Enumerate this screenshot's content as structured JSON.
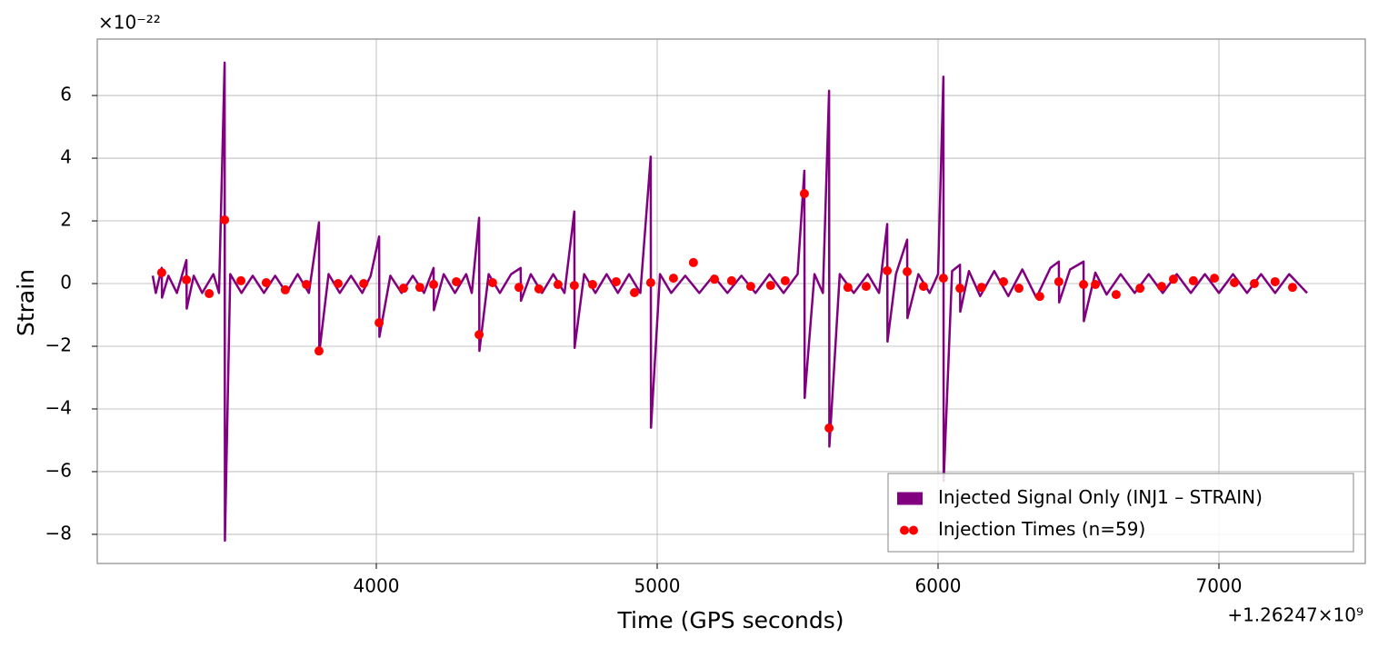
{
  "chart_data": {
    "type": "line",
    "x_label": "Time (GPS seconds)",
    "y_label": "Strain",
    "x_offset_label": "+1.26247×10⁹",
    "y_multiplier_label": "×10⁻²²",
    "xlim": [
      3006.5,
      7521
    ],
    "ylim": [
      -8.93,
      7.8
    ],
    "xticks": [
      4000,
      5000,
      6000,
      7000
    ],
    "yticks": [
      {
        "value": -8,
        "label": "−8"
      },
      {
        "value": -6,
        "label": "−6"
      },
      {
        "value": -4,
        "label": "−4"
      },
      {
        "value": -2,
        "label": "−2"
      },
      0,
      2,
      4,
      6
    ],
    "grid": true,
    "legend": "lower right",
    "series": [
      {
        "name": "Injected Signal Only (INJ1 – STRAIN)",
        "type": "line",
        "color": "#800080",
        "x": [
          3204,
          3215,
          3236,
          3237,
          3260,
          3290,
          3324,
          3325,
          3350,
          3380,
          3420,
          3440,
          3460,
          3461,
          3480,
          3520,
          3560,
          3600,
          3640,
          3680,
          3720,
          3760,
          3796,
          3797,
          3830,
          3870,
          3910,
          3950,
          3980,
          4010,
          4011,
          4050,
          4090,
          4130,
          4170,
          4204,
          4205,
          4240,
          4280,
          4320,
          4340,
          4366,
          4367,
          4400,
          4440,
          4480,
          4514,
          4515,
          4550,
          4590,
          4630,
          4670,
          4705,
          4706,
          4740,
          4780,
          4820,
          4860,
          4900,
          4940,
          4977,
          4978,
          5010,
          5050,
          5100,
          5150,
          5200,
          5250,
          5300,
          5350,
          5400,
          5450,
          5500,
          5524,
          5525,
          5560,
          5590,
          5612,
          5613,
          5650,
          5700,
          5750,
          5790,
          5819,
          5820,
          5850,
          5890,
          5891,
          5930,
          5970,
          6000,
          6019,
          6020,
          6050,
          6078,
          6079,
          6110,
          6150,
          6200,
          6250,
          6300,
          6350,
          6400,
          6430,
          6431,
          6470,
          6518,
          6519,
          6560,
          6600,
          6650,
          6700,
          6750,
          6800,
          6850,
          6900,
          6950,
          7000,
          7050,
          7100,
          7150,
          7200,
          7250,
          7314
        ],
        "values": [
          0.25,
          -0.3,
          0.5,
          -0.45,
          0.25,
          -0.3,
          0.75,
          -0.8,
          0.25,
          -0.3,
          0.3,
          -0.3,
          7.05,
          -8.2,
          0.3,
          -0.3,
          0.25,
          -0.3,
          0.25,
          -0.3,
          0.3,
          -0.3,
          1.95,
          -2.2,
          0.3,
          -0.3,
          0.25,
          -0.3,
          0.25,
          1.5,
          -1.7,
          0.25,
          -0.3,
          0.25,
          -0.3,
          0.5,
          -0.85,
          0.3,
          -0.3,
          0.3,
          -0.3,
          2.1,
          -2.15,
          0.3,
          -0.3,
          0.3,
          0.5,
          -0.55,
          0.3,
          -0.3,
          0.3,
          -0.3,
          2.3,
          -2.05,
          0.3,
          -0.3,
          0.3,
          -0.3,
          0.3,
          -0.3,
          4.05,
          -4.6,
          0.3,
          -0.3,
          0.25,
          -0.3,
          0.25,
          -0.3,
          0.25,
          -0.3,
          0.3,
          -0.3,
          0.3,
          3.6,
          -3.65,
          0.3,
          -0.3,
          6.15,
          -5.2,
          0.3,
          -0.3,
          0.3,
          -0.3,
          1.9,
          -1.85,
          0.3,
          1.4,
          -1.1,
          0.3,
          -0.3,
          0.3,
          6.6,
          -6.3,
          0.4,
          0.6,
          -0.9,
          0.4,
          -0.4,
          0.4,
          -0.4,
          0.45,
          -0.45,
          0.5,
          0.7,
          -0.6,
          0.45,
          0.7,
          -1.2,
          0.35,
          -0.35,
          0.3,
          -0.3,
          0.3,
          -0.3,
          0.3,
          -0.3,
          0.3,
          -0.3,
          0.3,
          -0.3,
          0.3,
          -0.3,
          0.3,
          -0.3
        ]
      },
      {
        "name": "Injection Times (n=59)",
        "type": "scatter",
        "color": "#ff0000",
        "x": [
          3236,
          3324,
          3405,
          3460,
          3518,
          3608,
          3676,
          3751,
          3796,
          3864,
          3955,
          4010,
          4097,
          4155,
          4204,
          4285,
          4366,
          4414,
          4508,
          4579,
          4647,
          4705,
          4770,
          4854,
          4919,
          4977,
          5058,
          5129,
          5204,
          5265,
          5333,
          5404,
          5456,
          5524,
          5612,
          5679,
          5744,
          5819,
          5890,
          5948,
          6019,
          6078,
          6155,
          6233,
          6288,
          6362,
          6430,
          6518,
          6560,
          6634,
          6719,
          6796,
          6838,
          6909,
          6984,
          7055,
          7126,
          7200,
          7262
        ],
        "values": [
          0.35,
          0.12,
          -0.32,
          2.03,
          0.09,
          0.03,
          -0.2,
          -0.03,
          -2.15,
          0,
          0,
          -1.25,
          -0.15,
          -0.12,
          -0.03,
          0.06,
          -1.63,
          0.03,
          -0.12,
          -0.17,
          -0.03,
          -0.06,
          -0.03,
          0.06,
          -0.29,
          0.03,
          0.17,
          0.67,
          0.14,
          0.09,
          -0.09,
          -0.06,
          0.09,
          2.87,
          -4.61,
          -0.12,
          -0.09,
          0.41,
          0.38,
          -0.09,
          0.17,
          -0.15,
          -0.12,
          0.06,
          -0.15,
          -0.41,
          0.06,
          -0.03,
          -0.03,
          -0.35,
          -0.15,
          -0.09,
          0.14,
          0.09,
          0.17,
          0.03,
          0,
          0.06,
          -0.12
        ]
      }
    ]
  }
}
